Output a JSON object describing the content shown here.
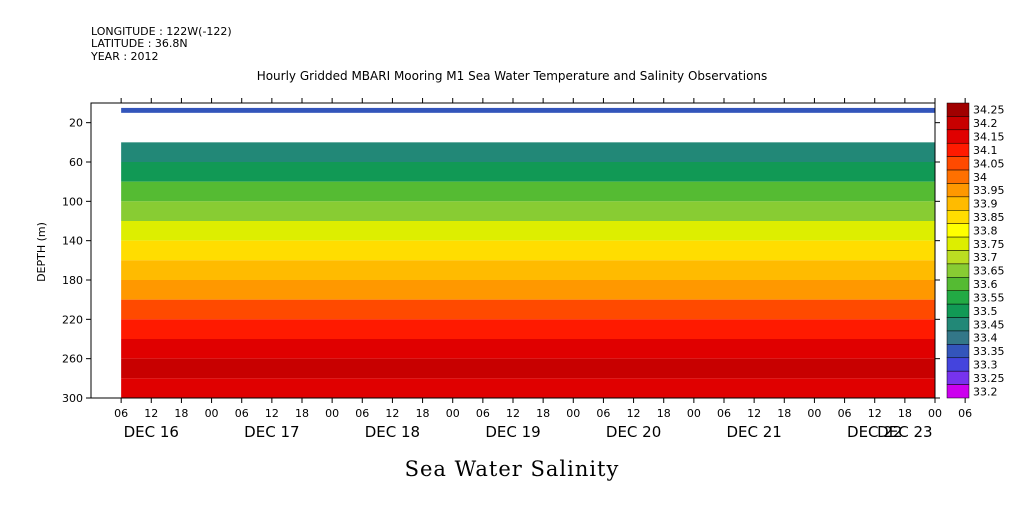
{
  "header": {
    "longitude": "LONGITUDE : 122W(-122)",
    "latitude": "LATITUDE : 36.8N",
    "year": "YEAR : 2012"
  },
  "chart_data": {
    "type": "heatmap",
    "title": "Hourly Gridded MBARI Mooring M1 Sea Water Temperature and Salinity Observations",
    "xlabel": "Sea Water Salinity",
    "ylabel": "DEPTH (m)",
    "x_hour_ticks": [
      "06",
      "12",
      "18",
      "00",
      "06",
      "12",
      "18",
      "00",
      "06",
      "12",
      "18",
      "00",
      "06",
      "12",
      "18",
      "00",
      "06",
      "12",
      "18",
      "00",
      "06",
      "12",
      "18",
      "00",
      "06",
      "12",
      "18",
      "00",
      "06"
    ],
    "x_day_labels": [
      "DEC 16",
      "DEC 17",
      "DEC 18",
      "DEC 19",
      "DEC 20",
      "DEC 21",
      "DEC 22",
      "DEC 23"
    ],
    "x_range_hours": [
      0,
      168
    ],
    "y_ticks": [
      20,
      60,
      100,
      140,
      180,
      220,
      260,
      300
    ],
    "y_range": [
      300,
      0
    ],
    "data_start_hour": 6,
    "surface_band": {
      "depth_top": 5,
      "depth_bottom": 10,
      "value": 33.35
    },
    "gap_depth_range": [
      10,
      40
    ],
    "depth_profile": [
      {
        "depth": 40,
        "value": 33.45
      },
      {
        "depth": 60,
        "value": 33.5
      },
      {
        "depth": 80,
        "value": 33.6
      },
      {
        "depth": 100,
        "value": 33.65
      },
      {
        "depth": 120,
        "value": 33.75
      },
      {
        "depth": 140,
        "value": 33.85
      },
      {
        "depth": 160,
        "value": 33.9
      },
      {
        "depth": 180,
        "value": 33.95
      },
      {
        "depth": 200,
        "value": 34.05
      },
      {
        "depth": 220,
        "value": 34.1
      },
      {
        "depth": 240,
        "value": 34.15
      },
      {
        "depth": 260,
        "value": 34.2
      },
      {
        "depth": 280,
        "value": 34.15
      },
      {
        "depth": 300,
        "value": 34.1
      }
    ],
    "colorbar": {
      "levels": [
        "34.25",
        "34.2",
        "34.15",
        "34.1",
        "34.05",
        "34",
        "33.95",
        "33.9",
        "33.85",
        "33.8",
        "33.75",
        "33.7",
        "33.65",
        "33.6",
        "33.55",
        "33.5",
        "33.45",
        "33.4",
        "33.35",
        "33.3",
        "33.25",
        "33.2"
      ],
      "colors": [
        "#a00000",
        "#c80000",
        "#e00000",
        "#ff1a00",
        "#ff4a00",
        "#ff7000",
        "#ff9800",
        "#ffbb00",
        "#ffdd00",
        "#ffff00",
        "#ddee00",
        "#bbdd22",
        "#88cc33",
        "#55bb33",
        "#22aa44",
        "#119955",
        "#228877",
        "#337788",
        "#3355bb",
        "#4444dd",
        "#7733ee",
        "#cc00ee"
      ]
    }
  }
}
